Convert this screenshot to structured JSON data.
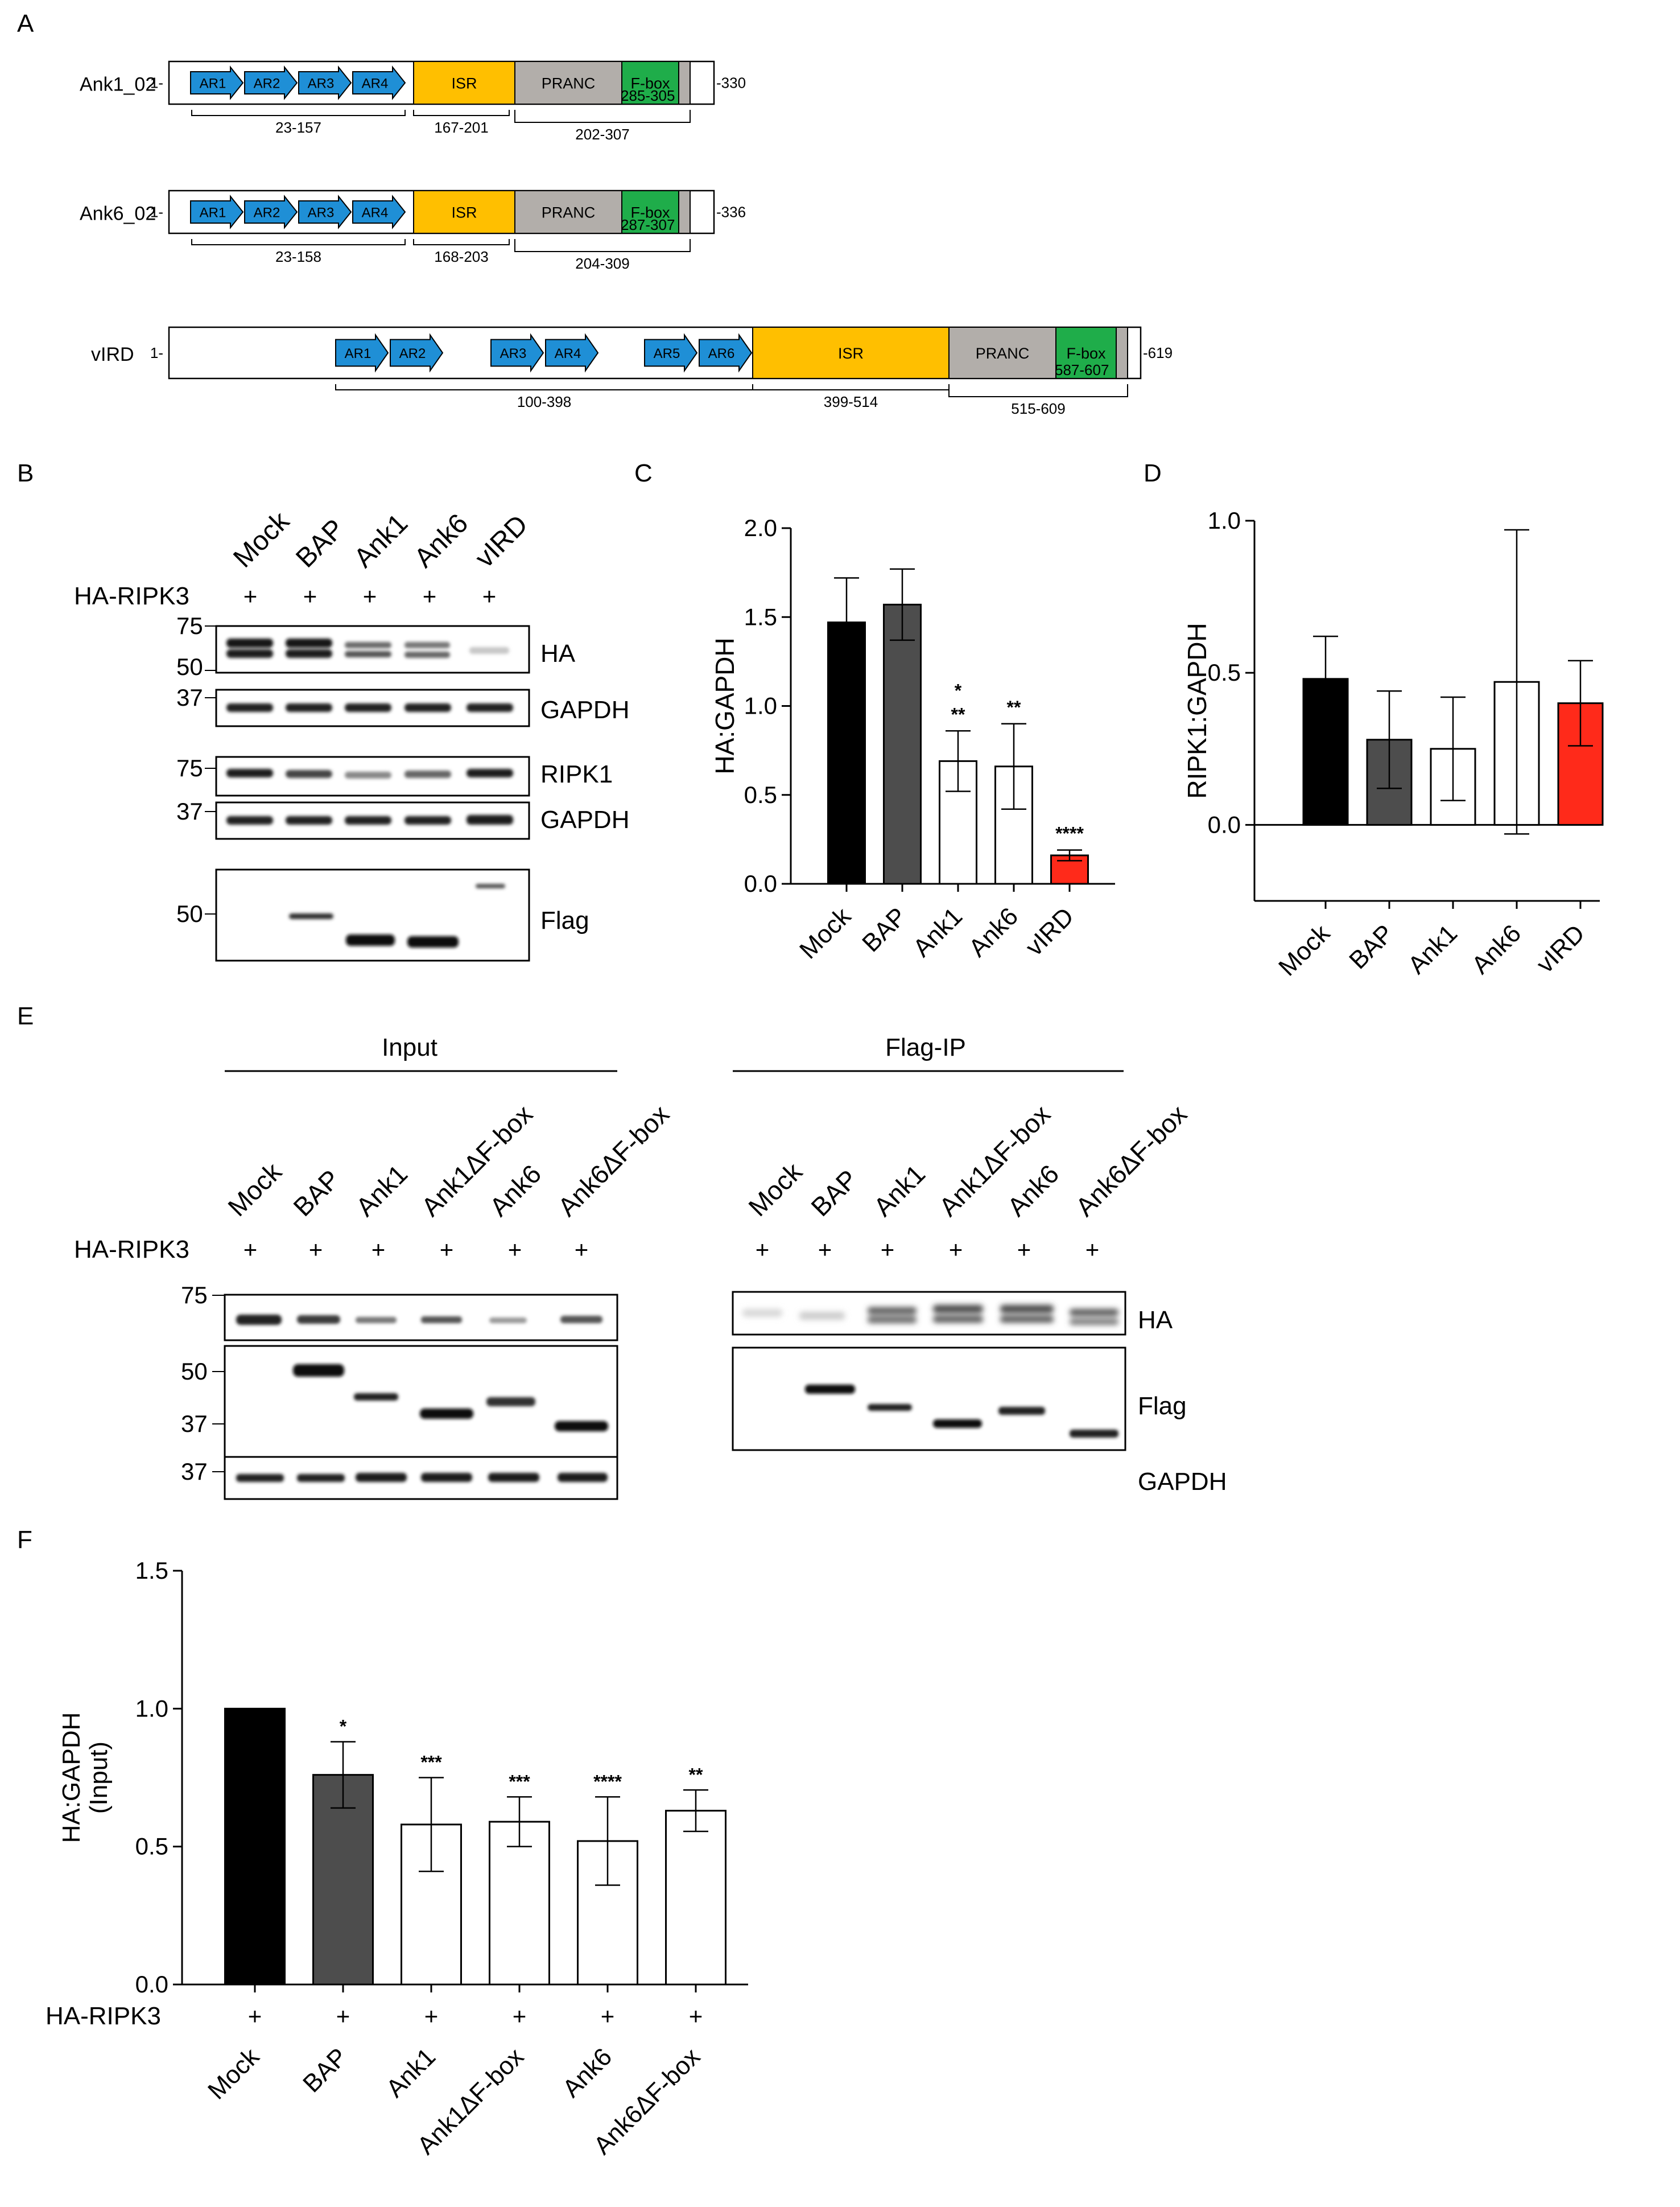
{
  "panels": [
    "A",
    "B",
    "C",
    "D",
    "E",
    "F"
  ],
  "colors": {
    "ar": "#1f8fd6",
    "isr": "#ffbf00",
    "pranc": "#b2aeaa",
    "fbox": "#1fad4a",
    "mock": "#000000",
    "bap": "#4d4d4d",
    "empty": "#ffffff",
    "virdBar": "#ff2a1a",
    "sigRed": "#ff2a1a"
  },
  "domains": {
    "proteins": [
      {
        "name": "Ank1_02",
        "start": "1-",
        "end": "-330",
        "ars": [
          "AR1",
          "AR2",
          "AR3",
          "AR4"
        ],
        "isr": "ISR",
        "pranc": "PRANC",
        "fbox": "F-box",
        "ranges": {
          "ar": "23-157",
          "isr": "167-201",
          "pranc": "202-307",
          "fbox": "285-305"
        }
      },
      {
        "name": "Ank6_02",
        "start": "1-",
        "end": "-336",
        "ars": [
          "AR1",
          "AR2",
          "AR3",
          "AR4"
        ],
        "isr": "ISR",
        "pranc": "PRANC",
        "fbox": "F-box",
        "ranges": {
          "ar": "23-158",
          "isr": "168-203",
          "pranc": "204-309",
          "fbox": "287-307"
        }
      },
      {
        "name": "vIRD",
        "start": "1-",
        "end": "-619",
        "ars": [
          "AR1",
          "AR2",
          "AR3",
          "AR4",
          "AR5",
          "AR6"
        ],
        "isr": "ISR",
        "pranc": "PRANC",
        "fbox": "F-box",
        "ranges": {
          "ar": "100-398",
          "isr": "399-514",
          "pranc": "515-609",
          "fbox": "587-607"
        }
      }
    ]
  },
  "panelB": {
    "lanes": [
      "Mock",
      "BAP",
      "Ank1",
      "Ank6",
      "vIRD"
    ],
    "treatment": "HA-RIPK3",
    "plus": [
      "+",
      "+",
      "+",
      "+",
      "+"
    ],
    "blots": [
      {
        "label": "HA",
        "markers": [
          "75",
          "50"
        ]
      },
      {
        "label": "GAPDH",
        "markers": [
          "37"
        ]
      },
      {
        "label": "RIPK1",
        "markers": [
          "75"
        ]
      },
      {
        "label": "GAPDH",
        "markers": [
          "37"
        ]
      },
      {
        "label": "Flag",
        "markers": [
          "50"
        ]
      }
    ]
  },
  "panelE": {
    "groups": [
      "Input",
      "Flag-IP"
    ],
    "lanes": [
      "Mock",
      "BAP",
      "Ank1",
      "Ank1ΔF-box",
      "Ank6",
      "Ank6ΔF-box"
    ],
    "treatment": "HA-RIPK3",
    "plus": [
      "+",
      "+",
      "+",
      "+",
      "+",
      "+"
    ],
    "markers": [
      "75",
      "50",
      "37",
      "37"
    ],
    "blot_labels": [
      "HA",
      "Flag",
      "GAPDH"
    ]
  },
  "chart_data": [
    {
      "panel": "C",
      "type": "bar",
      "categories": [
        "Mock",
        "BAP",
        "Ank1",
        "Ank6",
        "vIRD"
      ],
      "values": [
        1.47,
        1.57,
        0.69,
        0.66,
        0.16
      ],
      "errors": [
        0.25,
        0.2,
        0.17,
        0.24,
        0.03
      ],
      "colors": [
        "#000000",
        "#4d4d4d",
        "#ffffff",
        "#ffffff",
        "#ff2a1a"
      ],
      "significance": [
        "",
        "",
        "**",
        "**",
        "****"
      ],
      "extra_significance": [
        {
          "category": "Ank1",
          "label": "*",
          "color": "#ff2a1a"
        }
      ],
      "ylabel": "HA:GAPDH",
      "yticks": [
        "0.0",
        "0.5",
        "1.0",
        "1.5",
        "2.0"
      ],
      "ylim": [
        0,
        2.0
      ]
    },
    {
      "panel": "D",
      "type": "bar",
      "categories": [
        "Mock",
        "BAP",
        "Ank1",
        "Ank6",
        "vIRD"
      ],
      "values": [
        0.48,
        0.28,
        0.25,
        0.47,
        0.4
      ],
      "errors": [
        0.14,
        0.16,
        0.17,
        0.5,
        0.14
      ],
      "colors": [
        "#000000",
        "#4d4d4d",
        "#ffffff",
        "#ffffff",
        "#ff2a1a"
      ],
      "ylabel": "RIPK1:GAPDH",
      "yticks": [
        "0.0",
        "0.5",
        "1.0"
      ],
      "ylim": [
        -0.25,
        1.0
      ]
    },
    {
      "panel": "F",
      "type": "bar",
      "categories": [
        "Mock",
        "BAP",
        "Ank1",
        "Ank1ΔF-box",
        "Ank6",
        "Ank6ΔF-box"
      ],
      "values": [
        1.0,
        0.76,
        0.58,
        0.59,
        0.52,
        0.63
      ],
      "errors": [
        0.0,
        0.12,
        0.17,
        0.09,
        0.16,
        0.075
      ],
      "colors": [
        "#000000",
        "#4d4d4d",
        "#ffffff",
        "#ffffff",
        "#ffffff",
        "#ffffff"
      ],
      "significance": [
        "*",
        "***",
        "***",
        "****",
        "**"
      ],
      "ylabel": "HA:GAPDH",
      "ylabel2": "(Input)",
      "treatment": "HA-RIPK3",
      "plus": [
        "+",
        "+",
        "+",
        "+",
        "+",
        "+"
      ],
      "yticks": [
        "0.0",
        "0.5",
        "1.0",
        "1.5"
      ],
      "ylim": [
        0,
        1.5
      ]
    }
  ]
}
